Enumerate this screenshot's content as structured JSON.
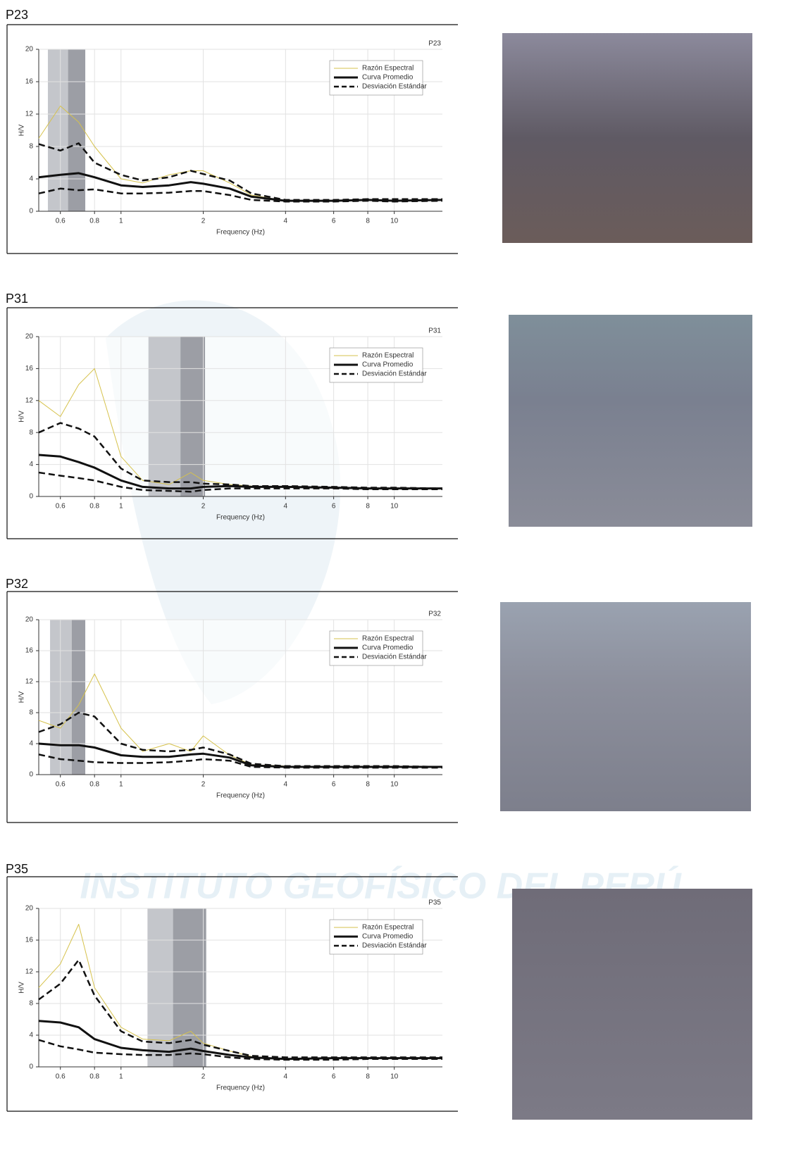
{
  "watermark": "INSTITUTO GEOFÍSICO DEL PERÚ",
  "chart_data": [
    {
      "type": "line",
      "title": "P23",
      "annotation": "P23",
      "xlabel": "Frequency (Hz)",
      "ylabel": "H/V",
      "log_x": true,
      "grid": true,
      "xlim": [
        0.5,
        15
      ],
      "ylim": [
        0,
        20
      ],
      "xticks": [
        0.6,
        0.8,
        1,
        2,
        4,
        6,
        8,
        10
      ],
      "yticks": [
        0,
        4,
        8,
        12,
        16,
        20
      ],
      "bands": [
        {
          "x": [
            0.54,
            0.64
          ],
          "color": "#c4c6cb"
        },
        {
          "x": [
            0.64,
            0.74
          ],
          "color": "#9c9ea5"
        }
      ],
      "x": [
        0.5,
        0.6,
        0.7,
        0.8,
        1,
        1.2,
        1.5,
        1.8,
        2,
        2.5,
        3,
        4,
        6,
        8,
        10,
        15
      ],
      "series": [
        {
          "name": "Razón Espectral",
          "color": "#d6c24c",
          "width": 1,
          "dash": false,
          "values": [
            9,
            13,
            11,
            8,
            4,
            3.5,
            4.5,
            5,
            5,
            3.5,
            2,
            1.3,
            1.3,
            1.4,
            1.3,
            1.4
          ]
        },
        {
          "name": "Curva Promedio",
          "color": "#111111",
          "width": 3,
          "dash": false,
          "values": [
            4.2,
            4.5,
            4.7,
            4.2,
            3.2,
            3,
            3.2,
            3.6,
            3.4,
            2.8,
            1.8,
            1.3,
            1.3,
            1.4,
            1.3,
            1.4
          ]
        },
        {
          "name": "Desviación Estándar",
          "color": "#111111",
          "width": 2.5,
          "dash": true,
          "values": [
            8.3,
            7.5,
            8.4,
            6,
            4.5,
            3.8,
            4.2,
            5,
            4.6,
            3.8,
            2.2,
            1.4,
            1.4,
            1.5,
            1.5,
            1.5
          ]
        },
        {
          "color": "#111111",
          "width": 2.5,
          "dash": true,
          "values": [
            2.2,
            2.8,
            2.6,
            2.7,
            2.2,
            2.2,
            2.3,
            2.5,
            2.5,
            2,
            1.4,
            1.2,
            1.2,
            1.3,
            1.2,
            1.3
          ]
        }
      ]
    },
    {
      "type": "line",
      "title": "P31",
      "annotation": "P31",
      "xlabel": "Frequency (Hz)",
      "ylabel": "H/V",
      "log_x": true,
      "grid": true,
      "xlim": [
        0.5,
        15
      ],
      "ylim": [
        0,
        20
      ],
      "xticks": [
        0.6,
        0.8,
        1,
        2,
        4,
        6,
        8,
        10
      ],
      "yticks": [
        0,
        4,
        8,
        12,
        16,
        20
      ],
      "bands": [
        {
          "x": [
            1.26,
            1.65
          ],
          "color": "#c4c6cb"
        },
        {
          "x": [
            1.65,
            2.03
          ],
          "color": "#9c9ea5"
        }
      ],
      "x": [
        0.5,
        0.6,
        0.7,
        0.8,
        1,
        1.2,
        1.5,
        1.8,
        2,
        2.5,
        3,
        4,
        6,
        8,
        10,
        15
      ],
      "series": [
        {
          "name": "Razón Espectral",
          "color": "#d6c24c",
          "width": 1,
          "dash": false,
          "values": [
            12,
            10,
            14,
            16,
            5,
            2,
            1.5,
            3,
            2,
            1.5,
            1.3,
            1.2,
            1.1,
            1,
            1,
            1
          ]
        },
        {
          "name": "Curva Promedio",
          "color": "#111111",
          "width": 3,
          "dash": false,
          "values": [
            5.2,
            5,
            4.3,
            3.6,
            2,
            1.2,
            1,
            1,
            1.2,
            1.3,
            1.2,
            1.2,
            1.1,
            1,
            1,
            1
          ]
        },
        {
          "name": "Desviación Estándar",
          "color": "#111111",
          "width": 2.5,
          "dash": true,
          "values": [
            8,
            9.2,
            8.5,
            7.5,
            3.5,
            2,
            1.8,
            1.8,
            1.6,
            1.5,
            1.3,
            1.3,
            1.2,
            1.1,
            1.1,
            1
          ]
        },
        {
          "color": "#111111",
          "width": 2.5,
          "dash": true,
          "values": [
            3,
            2.6,
            2.3,
            2,
            1.2,
            0.8,
            0.7,
            0.6,
            0.8,
            1,
            1,
            1,
            1,
            0.9,
            0.9,
            0.9
          ]
        }
      ]
    },
    {
      "type": "line",
      "title": "P32",
      "annotation": "P32",
      "xlabel": "Frequency (Hz)",
      "ylabel": "H/V",
      "log_x": true,
      "grid": true,
      "xlim": [
        0.5,
        15
      ],
      "ylim": [
        0,
        20
      ],
      "xticks": [
        0.6,
        0.8,
        1,
        2,
        4,
        6,
        8,
        10
      ],
      "yticks": [
        0,
        4,
        8,
        12,
        16,
        20
      ],
      "bands": [
        {
          "x": [
            0.55,
            0.66
          ],
          "color": "#c4c6cb"
        },
        {
          "x": [
            0.66,
            0.74
          ],
          "color": "#9c9ea5"
        }
      ],
      "x": [
        0.5,
        0.6,
        0.7,
        0.8,
        1,
        1.2,
        1.5,
        1.8,
        2,
        2.5,
        3,
        4,
        6,
        8,
        10,
        15
      ],
      "series": [
        {
          "name": "Razón Espectral",
          "color": "#d6c24c",
          "width": 1,
          "dash": false,
          "values": [
            7,
            6,
            9,
            13,
            6,
            3,
            4,
            3,
            5,
            2.5,
            1.3,
            1.1,
            1,
            1,
            1,
            1
          ]
        },
        {
          "name": "Curva Promedio",
          "color": "#111111",
          "width": 3,
          "dash": false,
          "values": [
            4,
            3.8,
            3.8,
            3.5,
            2.5,
            2.3,
            2.3,
            2.6,
            2.7,
            2.2,
            1.2,
            1,
            1,
            1,
            1,
            1
          ]
        },
        {
          "name": "Desviación Estándar",
          "color": "#111111",
          "width": 2.5,
          "dash": true,
          "values": [
            5.5,
            6.5,
            8,
            7.5,
            4,
            3.2,
            3,
            3.2,
            3.5,
            2.6,
            1.4,
            1.1,
            1.1,
            1.1,
            1.1,
            1
          ]
        },
        {
          "color": "#111111",
          "width": 2.5,
          "dash": true,
          "values": [
            2.6,
            2,
            1.8,
            1.6,
            1.5,
            1.5,
            1.6,
            1.8,
            2,
            1.8,
            1,
            0.9,
            0.9,
            0.9,
            0.9,
            0.9
          ]
        }
      ]
    },
    {
      "type": "line",
      "title": "P35",
      "annotation": "P35",
      "xlabel": "Frequency (Hz)",
      "ylabel": "H/V",
      "log_x": true,
      "grid": true,
      "xlim": [
        0.5,
        15
      ],
      "ylim": [
        0,
        20
      ],
      "xticks": [
        0.6,
        0.8,
        1,
        2,
        4,
        6,
        8,
        10
      ],
      "yticks": [
        0,
        4,
        8,
        12,
        16,
        20
      ],
      "bands": [
        {
          "x": [
            1.25,
            1.55
          ],
          "color": "#c4c6cb"
        },
        {
          "x": [
            1.55,
            2.05
          ],
          "color": "#9c9ea5"
        }
      ],
      "x": [
        0.5,
        0.6,
        0.7,
        0.8,
        1,
        1.2,
        1.5,
        1.8,
        2,
        2.5,
        3,
        4,
        6,
        8,
        10,
        15
      ],
      "series": [
        {
          "name": "Razón Espectral",
          "color": "#d6c24c",
          "width": 1,
          "dash": false,
          "values": [
            10,
            13,
            18,
            10,
            5,
            3.5,
            3.3,
            4.5,
            3,
            2,
            1.3,
            1,
            1.1,
            1.1,
            1.1,
            1.1
          ]
        },
        {
          "name": "Curva Promedio",
          "color": "#111111",
          "width": 3,
          "dash": false,
          "values": [
            5.8,
            5.6,
            5,
            3.5,
            2.4,
            2.1,
            1.9,
            2.3,
            2,
            1.5,
            1.2,
            1,
            1.1,
            1.1,
            1.1,
            1.1
          ]
        },
        {
          "name": "Desviación Estándar",
          "color": "#111111",
          "width": 2.5,
          "dash": true,
          "values": [
            8.5,
            10.5,
            13.5,
            9,
            4.5,
            3.2,
            3,
            3.4,
            2.8,
            2,
            1.4,
            1.2,
            1.2,
            1.2,
            1.2,
            1.2
          ]
        },
        {
          "color": "#111111",
          "width": 2.5,
          "dash": true,
          "values": [
            3.4,
            2.6,
            2.2,
            1.8,
            1.6,
            1.5,
            1.5,
            1.7,
            1.6,
            1.2,
            1,
            0.9,
            0.9,
            1,
            1,
            1
          ]
        }
      ]
    }
  ]
}
